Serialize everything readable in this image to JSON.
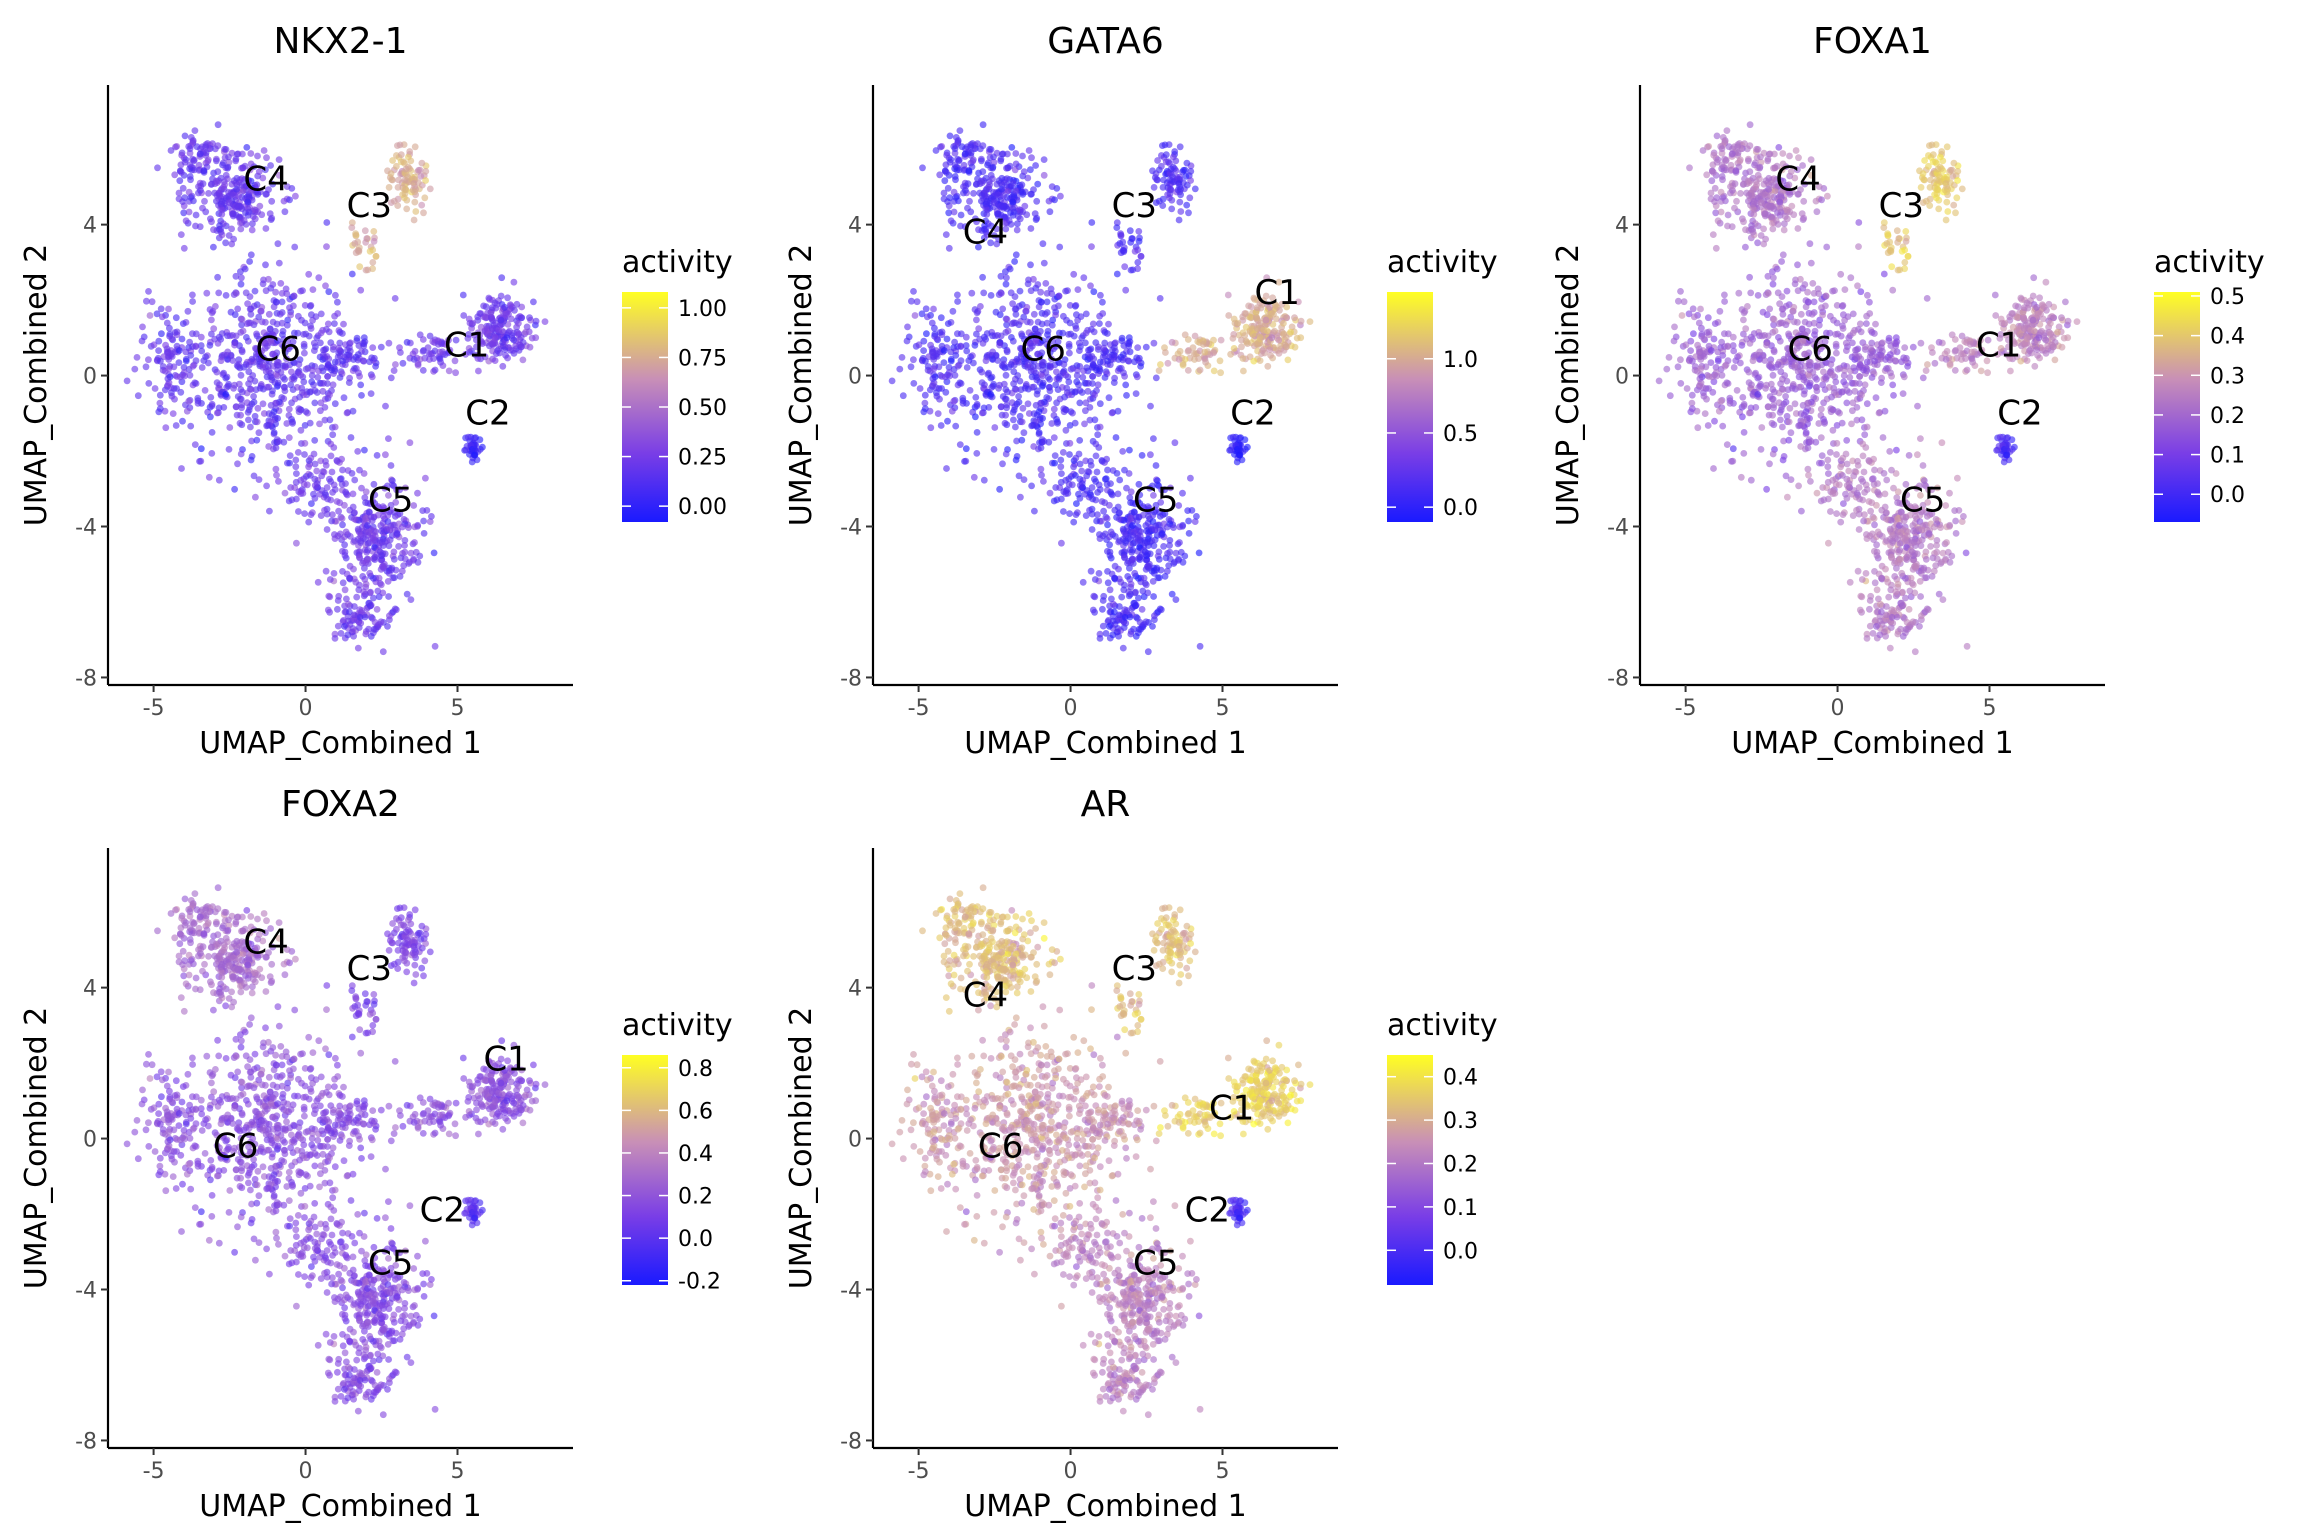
{
  "chart_data": {
    "type": "scatter",
    "layout": "faceted-umap",
    "panels": [
      {
        "title": "NKX2-1",
        "xlabel": "UMAP_Combined 1",
        "ylabel": "UMAP_Combined 2",
        "xlim": [
          -6.5,
          8.8
        ],
        "ylim": [
          -8.2,
          7.7
        ],
        "xticks": [
          -5,
          0,
          5
        ],
        "yticks": [
          -8,
          -4,
          0,
          4
        ],
        "legend": {
          "title": "activity",
          "ticks": [
            "0.00",
            "0.25",
            "0.50",
            "0.75",
            "1.00"
          ],
          "tick_values": [
            0,
            0.25,
            0.5,
            0.75,
            1.0
          ],
          "range": [
            -0.08,
            1.08
          ],
          "placement": "right"
        },
        "cluster_labels": [
          {
            "text": "C4",
            "x": -1.3,
            "y": 4.9
          },
          {
            "text": "C3",
            "x": 2.1,
            "y": 4.2
          },
          {
            "text": "C6",
            "x": -0.9,
            "y": 0.4
          },
          {
            "text": "C1",
            "x": 5.3,
            "y": 0.5
          },
          {
            "text": "C2",
            "x": 6.0,
            "y": -1.3
          },
          {
            "text": "C5",
            "x": 2.8,
            "y": -3.6
          }
        ],
        "cluster_activity": {
          "C1": 0.22,
          "C2": 0.05,
          "C3": 0.75,
          "C4": 0.2,
          "C5": 0.22,
          "C6": 0.18
        }
      },
      {
        "title": "GATA6",
        "xlabel": "UMAP_Combined 1",
        "ylabel": "UMAP_Combined 2",
        "xlim": [
          -6.5,
          8.8
        ],
        "ylim": [
          -8.2,
          7.7
        ],
        "xticks": [
          -5,
          0,
          5
        ],
        "yticks": [
          -8,
          -4,
          0,
          4
        ],
        "legend": {
          "title": "activity",
          "ticks": [
            "0.0",
            "0.5",
            "1.0"
          ],
          "tick_values": [
            0,
            0.5,
            1.0
          ],
          "range": [
            -0.1,
            1.45
          ],
          "placement": "right"
        },
        "cluster_labels": [
          {
            "text": "C4",
            "x": -2.8,
            "y": 3.5
          },
          {
            "text": "C3",
            "x": 2.1,
            "y": 4.2
          },
          {
            "text": "C6",
            "x": -0.9,
            "y": 0.4
          },
          {
            "text": "C1",
            "x": 6.8,
            "y": 1.9
          },
          {
            "text": "C2",
            "x": 6.0,
            "y": -1.3
          },
          {
            "text": "C5",
            "x": 2.8,
            "y": -3.6
          }
        ],
        "cluster_activity": {
          "C1": 1.0,
          "C2": 0.0,
          "C3": 0.15,
          "C4": 0.15,
          "C5": 0.12,
          "C6": 0.15
        }
      },
      {
        "title": "FOXA1",
        "xlabel": "UMAP_Combined 1",
        "ylabel": "UMAP_Combined 2",
        "xlim": [
          -6.5,
          8.8
        ],
        "ylim": [
          -8.2,
          7.7
        ],
        "xticks": [
          -5,
          0,
          5
        ],
        "yticks": [
          -8,
          -4,
          0,
          4
        ],
        "legend": {
          "title": "activity",
          "ticks": [
            "0.0",
            "0.1",
            "0.2",
            "0.3",
            "0.4",
            "0.5"
          ],
          "tick_values": [
            0,
            0.1,
            0.2,
            0.3,
            0.4,
            0.5
          ],
          "range": [
            -0.07,
            0.51
          ],
          "placement": "right"
        },
        "cluster_labels": [
          {
            "text": "C4",
            "x": -1.3,
            "y": 4.9
          },
          {
            "text": "C3",
            "x": 2.1,
            "y": 4.2
          },
          {
            "text": "C6",
            "x": -0.9,
            "y": 0.4
          },
          {
            "text": "C1",
            "x": 5.3,
            "y": 0.5
          },
          {
            "text": "C2",
            "x": 6.0,
            "y": -1.3
          },
          {
            "text": "C5",
            "x": 2.8,
            "y": -3.6
          }
        ],
        "cluster_activity": {
          "C1": 0.26,
          "C2": 0.02,
          "C3": 0.4,
          "C4": 0.23,
          "C5": 0.24,
          "C6": 0.18
        }
      },
      {
        "title": "FOXA2",
        "xlabel": "UMAP_Combined 1",
        "ylabel": "UMAP_Combined 2",
        "xlim": [
          -6.5,
          8.8
        ],
        "ylim": [
          -8.2,
          7.7
        ],
        "xticks": [
          -5,
          0,
          5
        ],
        "yticks": [
          -8,
          -4,
          0,
          4
        ],
        "legend": {
          "title": "activity",
          "ticks": [
            "-0.2",
            "0.0",
            "0.2",
            "0.4",
            "0.6",
            "0.8"
          ],
          "tick_values": [
            -0.2,
            0,
            0.2,
            0.4,
            0.6,
            0.8
          ],
          "range": [
            -0.22,
            0.86
          ],
          "placement": "right"
        },
        "cluster_labels": [
          {
            "text": "C4",
            "x": -1.3,
            "y": 4.9
          },
          {
            "text": "C3",
            "x": 2.1,
            "y": 4.2
          },
          {
            "text": "C1",
            "x": 6.6,
            "y": 1.8
          },
          {
            "text": "C6",
            "x": -2.3,
            "y": -0.5
          },
          {
            "text": "C2",
            "x": 4.5,
            "y": -2.2
          },
          {
            "text": "C5",
            "x": 2.8,
            "y": -3.6
          }
        ],
        "cluster_activity": {
          "C1": 0.18,
          "C2": 0.0,
          "C3": 0.12,
          "C4": 0.3,
          "C5": 0.15,
          "C6": 0.17
        }
      },
      {
        "title": "AR",
        "xlabel": "UMAP_Combined 1",
        "ylabel": "UMAP_Combined 2",
        "xlim": [
          -6.5,
          8.8
        ],
        "ylim": [
          -8.2,
          7.7
        ],
        "xticks": [
          -5,
          0,
          5
        ],
        "yticks": [
          -8,
          -4,
          0,
          4
        ],
        "legend": {
          "title": "activity",
          "ticks": [
            "0.0",
            "0.1",
            "0.2",
            "0.3",
            "0.4"
          ],
          "tick_values": [
            0,
            0.1,
            0.2,
            0.3,
            0.4
          ],
          "range": [
            -0.08,
            0.45
          ],
          "placement": "right"
        },
        "cluster_labels": [
          {
            "text": "C4",
            "x": -2.8,
            "y": 3.5
          },
          {
            "text": "C3",
            "x": 2.1,
            "y": 4.2
          },
          {
            "text": "C1",
            "x": 5.3,
            "y": 0.5
          },
          {
            "text": "C6",
            "x": -2.3,
            "y": -0.5
          },
          {
            "text": "C2",
            "x": 4.5,
            "y": -2.2
          },
          {
            "text": "C5",
            "x": 2.8,
            "y": -3.6
          }
        ],
        "cluster_activity": {
          "C1": 0.36,
          "C2": 0.0,
          "C3": 0.33,
          "C4": 0.33,
          "C5": 0.22,
          "C6": 0.26
        }
      }
    ],
    "color_scale": {
      "low": "#1a1aff",
      "mid1": "#7a3ee6",
      "mid2": "#c88fb7",
      "high": "#ffff22"
    },
    "grid": false
  }
}
